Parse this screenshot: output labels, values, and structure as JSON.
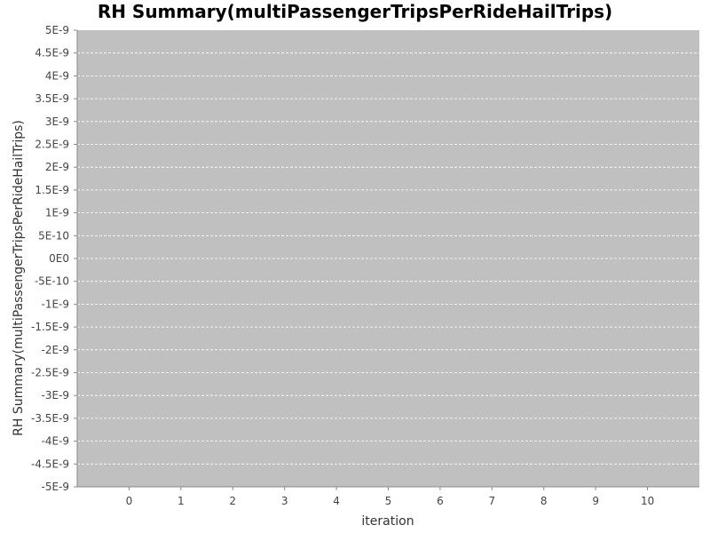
{
  "chart_data": {
    "type": "line",
    "title": "RH Summary(multiPassengerTripsPerRideHailTrips)",
    "xlabel": "iteration",
    "ylabel": "RH Summary(multiPassengerTripsPerRideHailTrips)",
    "x_ticks": [
      "0",
      "1",
      "2",
      "3",
      "4",
      "5",
      "6",
      "7",
      "8",
      "9",
      "10"
    ],
    "x_range": [
      -1,
      11
    ],
    "y_ticks": [
      "5E-9",
      "4.5E-9",
      "4E-9",
      "3.5E-9",
      "3E-9",
      "2.5E-9",
      "2E-9",
      "1.5E-9",
      "1E-9",
      "5E-10",
      "0E0",
      "-5E-10",
      "-1E-9",
      "-1.5E-9",
      "-2E-9",
      "-2.5E-9",
      "-3E-9",
      "-3.5E-9",
      "-4E-9",
      "-4.5E-9",
      "-5E-9"
    ],
    "y_range": [
      -5e-09,
      5e-09
    ],
    "grid": true,
    "series": [],
    "colors": {
      "plot_background": "#c0c0c0",
      "gridline": "#ffffff"
    }
  }
}
